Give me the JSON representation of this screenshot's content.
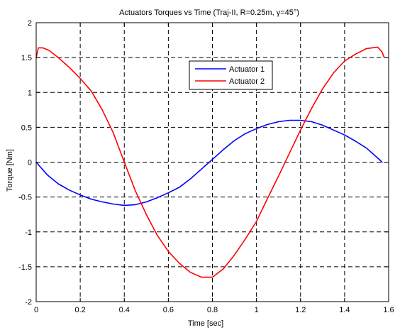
{
  "chart_data": {
    "type": "line",
    "title": "Actuators Torques vs Time (Traj-II, R=0.25m, γ=45°)",
    "xlabel": "Time [sec]",
    "ylabel": "Torque [Nm]",
    "xlim": [
      0,
      1.6
    ],
    "ylim": [
      -2,
      2
    ],
    "xticks": [
      "0",
      "0.2",
      "0.4",
      "0.6",
      "0.8",
      "1",
      "1.2",
      "1.4",
      "1.6"
    ],
    "yticks": [
      "-2",
      "-1.5",
      "-1",
      "-0.5",
      "0",
      "0.5",
      "1",
      "1.5",
      "2"
    ],
    "grid": true,
    "legend_position": "top-right",
    "series": [
      {
        "name": "Actuator 1",
        "color": "#0000ff",
        "x": [
          0,
          0.05,
          0.1,
          0.15,
          0.2,
          0.25,
          0.3,
          0.35,
          0.4,
          0.45,
          0.5,
          0.55,
          0.6,
          0.65,
          0.7,
          0.75,
          0.8,
          0.85,
          0.9,
          0.95,
          1.0,
          1.05,
          1.1,
          1.15,
          1.2,
          1.25,
          1.3,
          1.35,
          1.4,
          1.45,
          1.5,
          1.55,
          1.57
        ],
        "y": [
          0,
          -0.18,
          -0.31,
          -0.4,
          -0.47,
          -0.53,
          -0.57,
          -0.6,
          -0.62,
          -0.61,
          -0.57,
          -0.51,
          -0.44,
          -0.36,
          -0.24,
          -0.1,
          0.04,
          0.18,
          0.31,
          0.41,
          0.48,
          0.54,
          0.58,
          0.6,
          0.6,
          0.58,
          0.53,
          0.46,
          0.39,
          0.3,
          0.2,
          0.06,
          0
        ]
      },
      {
        "name": "Actuator 2",
        "color": "#ff0000",
        "x": [
          0,
          0.01,
          0.03,
          0.06,
          0.1,
          0.15,
          0.2,
          0.25,
          0.3,
          0.35,
          0.4,
          0.45,
          0.5,
          0.55,
          0.6,
          0.65,
          0.7,
          0.75,
          0.8,
          0.85,
          0.9,
          0.95,
          1.0,
          1.05,
          1.1,
          1.15,
          1.2,
          1.25,
          1.3,
          1.35,
          1.4,
          1.45,
          1.5,
          1.55,
          1.57,
          1.58
        ],
        "y": [
          1.5,
          1.64,
          1.64,
          1.6,
          1.5,
          1.36,
          1.2,
          1.02,
          0.75,
          0.42,
          0.0,
          -0.41,
          -0.75,
          -1.05,
          -1.28,
          -1.45,
          -1.58,
          -1.65,
          -1.65,
          -1.53,
          -1.33,
          -1.1,
          -0.85,
          -0.52,
          -0.2,
          0.13,
          0.46,
          0.77,
          1.05,
          1.28,
          1.45,
          1.55,
          1.63,
          1.65,
          1.58,
          1.5
        ]
      }
    ]
  }
}
